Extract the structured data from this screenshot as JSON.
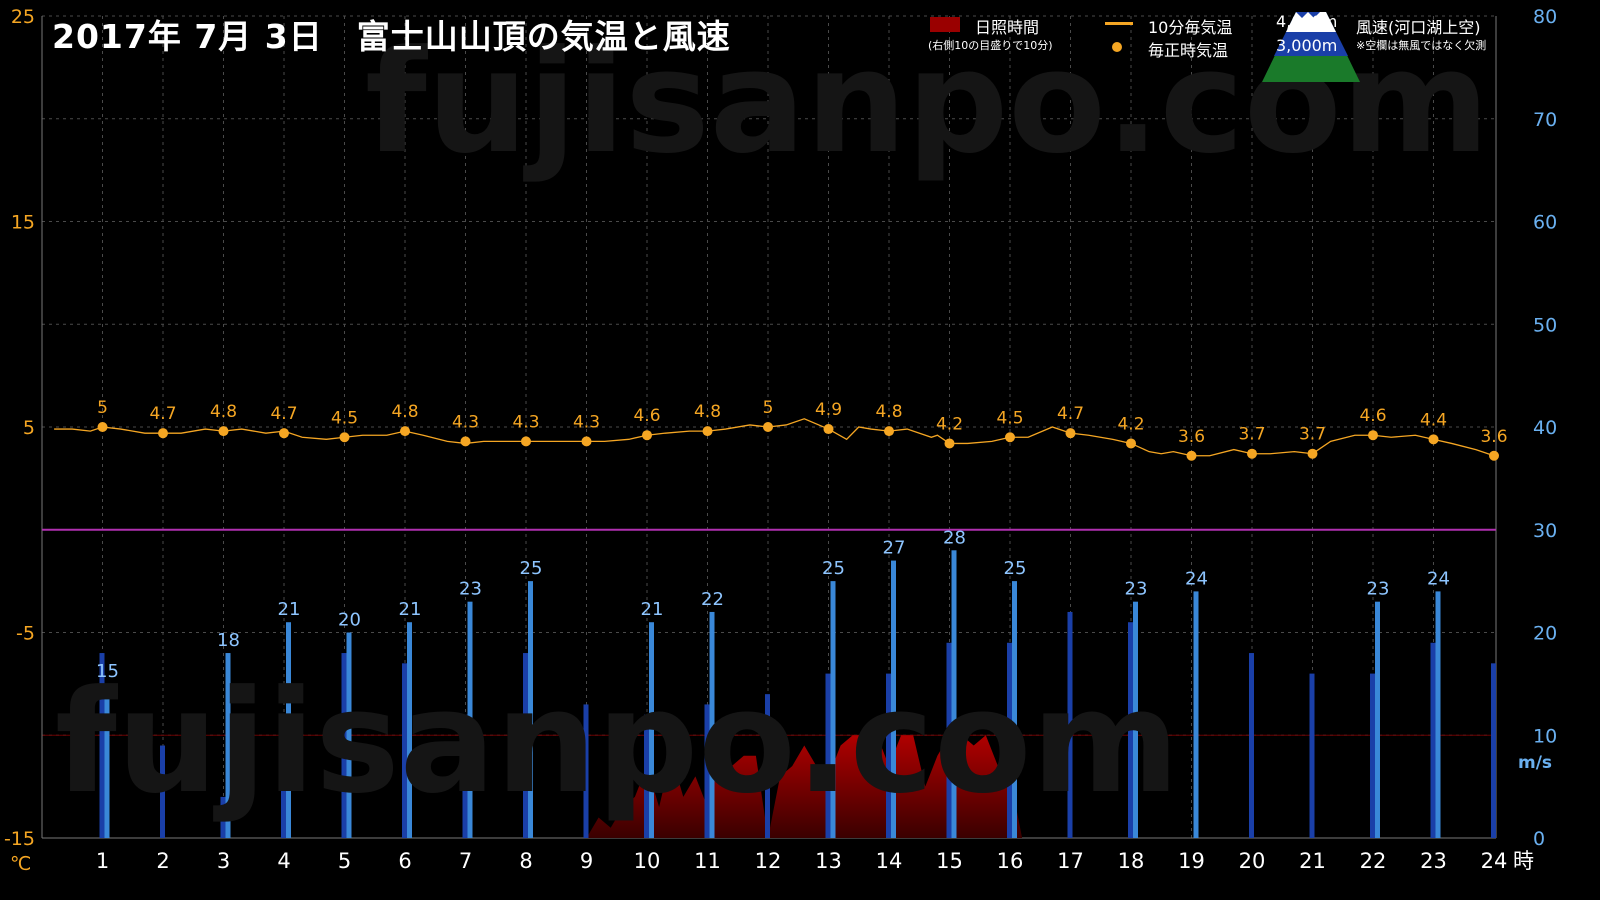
{
  "title": "2017年  7月  3日　富士山山頂の気温と風速",
  "watermark": "fujisanpo.com",
  "legend": {
    "sunshine_label": "日照時間",
    "sunshine_note": "(右側10の目盛りで10分)",
    "temp10_label": "10分毎気温",
    "temp_hourly_label": "毎正時気温",
    "alt4000": "4,000m",
    "alt3000": "3,000m",
    "wind_label": "風速(河口湖上空)",
    "wind_note": "※空欄は無風ではなく欠測"
  },
  "axes": {
    "left_unit": "℃",
    "right_unit": "m/s",
    "x_unit": "時",
    "left_ticks": [
      "25",
      "15",
      "5",
      "-5",
      "-15"
    ],
    "right_ticks": [
      "80",
      "70",
      "60",
      "50",
      "40",
      "30",
      "20",
      "10",
      "0"
    ],
    "x_ticks": [
      "1",
      "2",
      "3",
      "4",
      "5",
      "6",
      "7",
      "8",
      "9",
      "10",
      "11",
      "12",
      "13",
      "14",
      "15",
      "16",
      "17",
      "18",
      "19",
      "20",
      "21",
      "22",
      "23",
      "24"
    ]
  },
  "colors": {
    "temp": "#f5a623",
    "wind4000": "#3a88d8",
    "wind3000": "#1a3fa8",
    "wind_label": "#8ec5ff",
    "sunshine": "#9a0000",
    "purple_line": "#b030b0",
    "axis_left": "#f5a623",
    "axis_right": "#6ab0f0"
  },
  "chart_data": {
    "type": "line",
    "title": "2017年  7月  3日　富士山山頂の気温と風速",
    "temp_ylim": [
      -15,
      25
    ],
    "wind_ylim": [
      0,
      80
    ],
    "x_range": [
      0.2,
      24.0
    ],
    "hourly_temp": {
      "name": "毎正時気温",
      "x": [
        1,
        2,
        3,
        4,
        5,
        6,
        7,
        8,
        9,
        10,
        11,
        12,
        13,
        14,
        15,
        16,
        17,
        18,
        19,
        20,
        21,
        22,
        23,
        24
      ],
      "values": [
        5,
        4.7,
        4.8,
        4.7,
        4.5,
        4.8,
        4.3,
        4.3,
        4.3,
        4.6,
        4.8,
        5,
        4.9,
        4.8,
        4.2,
        4.5,
        4.7,
        4.2,
        3.6,
        3.7,
        3.7,
        4.6,
        4.4,
        3.6
      ]
    },
    "temp_10min": {
      "name": "10分毎気温",
      "x": [
        0.2,
        0.5,
        0.8,
        1.0,
        1.3,
        1.7,
        2.0,
        2.3,
        2.7,
        3.0,
        3.3,
        3.7,
        4.0,
        4.3,
        4.7,
        5.0,
        5.3,
        5.7,
        6.0,
        6.3,
        6.7,
        7.0,
        7.3,
        7.7,
        8.0,
        8.3,
        8.7,
        9.0,
        9.3,
        9.7,
        10.0,
        10.3,
        10.7,
        11.0,
        11.3,
        11.7,
        12.0,
        12.3,
        12.6,
        13.0,
        13.3,
        13.5,
        13.7,
        14.0,
        14.3,
        14.7,
        14.8,
        15.0,
        15.3,
        15.7,
        16.0,
        16.3,
        16.7,
        17.0,
        17.3,
        17.7,
        18.0,
        18.3,
        18.5,
        18.7,
        19.0,
        19.3,
        19.7,
        20.0,
        20.3,
        20.7,
        21.0,
        21.3,
        21.7,
        22.0,
        22.3,
        22.7,
        23.0,
        23.3,
        23.7,
        24.0
      ],
      "values": [
        4.9,
        4.9,
        4.8,
        5.0,
        4.9,
        4.7,
        4.7,
        4.7,
        4.9,
        4.8,
        4.9,
        4.7,
        4.8,
        4.5,
        4.4,
        4.5,
        4.6,
        4.6,
        4.8,
        4.6,
        4.3,
        4.2,
        4.3,
        4.3,
        4.3,
        4.3,
        4.3,
        4.3,
        4.3,
        4.4,
        4.6,
        4.7,
        4.8,
        4.8,
        4.9,
        5.1,
        5.0,
        5.1,
        5.4,
        4.9,
        4.4,
        5.0,
        4.9,
        4.8,
        4.9,
        4.5,
        4.6,
        4.2,
        4.2,
        4.3,
        4.5,
        4.5,
        5.0,
        4.7,
        4.6,
        4.4,
        4.2,
        3.8,
        3.7,
        3.8,
        3.6,
        3.6,
        3.9,
        3.7,
        3.7,
        3.8,
        3.7,
        4.3,
        4.6,
        4.6,
        4.5,
        4.6,
        4.4,
        4.2,
        3.9,
        3.6
      ]
    },
    "wind_4000m": {
      "name": "4,000m",
      "x": [
        1,
        3,
        4,
        5,
        6,
        7,
        8,
        10,
        11,
        13,
        14,
        15,
        16,
        18,
        19,
        22,
        23
      ],
      "values": [
        15,
        18,
        21,
        20,
        21,
        23,
        25,
        21,
        22,
        25,
        27,
        28,
        25,
        23,
        24,
        23,
        24
      ]
    },
    "wind_3000m": {
      "name": "3,000m",
      "x": [
        1,
        2,
        3,
        4,
        5,
        6,
        7,
        8,
        9,
        10,
        11,
        12,
        13,
        14,
        15,
        16,
        17,
        18,
        19,
        20,
        21,
        22,
        23,
        24
      ],
      "values": [
        18,
        9,
        4,
        12,
        18,
        17,
        12,
        18,
        13,
        12,
        13,
        14,
        16,
        16,
        19,
        19,
        22,
        21,
        null,
        18,
        16,
        16,
        19,
        17
      ]
    },
    "sunshine": {
      "name": "日照時間",
      "unit": "分",
      "x": [
        9.0,
        9.2,
        9.4,
        9.6,
        9.8,
        10.0,
        10.2,
        10.4,
        10.6,
        10.8,
        11.0,
        11.2,
        11.4,
        11.6,
        11.8,
        12.0,
        12.2,
        12.4,
        12.6,
        12.8,
        13.0,
        13.2,
        13.4,
        13.6,
        13.8,
        14.0,
        14.2,
        14.4,
        14.6,
        14.8,
        15.0,
        15.2,
        15.4,
        15.6,
        15.8,
        16.0,
        16.2
      ],
      "values": [
        0,
        2,
        1,
        3,
        4,
        7,
        3,
        8,
        4,
        6,
        3,
        9,
        7,
        8,
        8,
        0,
        6,
        7,
        9,
        7,
        6,
        9,
        10,
        10,
        10,
        7,
        10,
        10,
        5,
        8,
        10,
        10,
        9,
        10,
        7,
        6,
        0
      ]
    }
  }
}
